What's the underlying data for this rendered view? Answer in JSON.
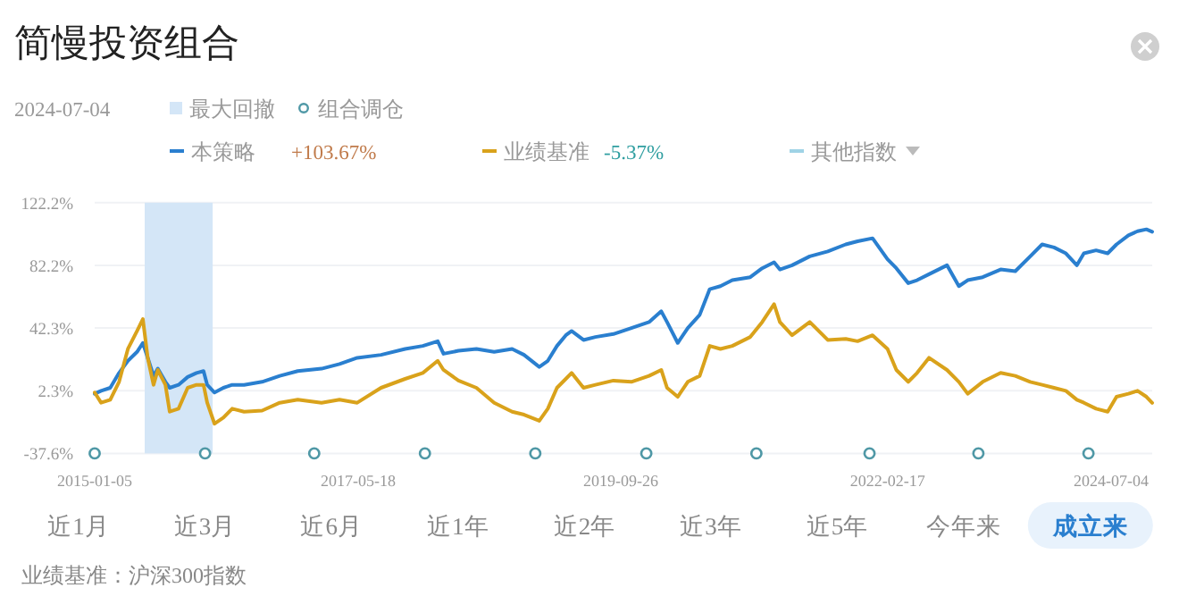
{
  "chart_data": {
    "type": "line",
    "title": "简慢投资组合",
    "subtitle": "2024-07-04",
    "xlim": [
      "2015-01-05",
      "2024-07-04"
    ],
    "xticks": [
      "2015-01-05",
      "2017-05-18",
      "2019-09-26",
      "2022-02-17",
      "2024-07-04"
    ],
    "ylim": [
      -37.6,
      122.2
    ],
    "yticks": [
      {
        "value": -37.6,
        "label": "-37.6%"
      },
      {
        "value": 2.3,
        "label": "2.3%"
      },
      {
        "value": 42.3,
        "label": "42.3%"
      },
      {
        "value": 82.2,
        "label": "82.2%"
      },
      {
        "value": 122.2,
        "label": "122.2%"
      }
    ],
    "grid": "y",
    "legend": "top left",
    "x": [
      "2015-01-05",
      "2015-01-26",
      "2015-02-25",
      "2015-03-26",
      "2015-04-24",
      "2015-05-24",
      "2015-06-12",
      "2015-06-28",
      "2015-07-17",
      "2015-07-31",
      "2015-08-25",
      "2015-09-08",
      "2015-10-07",
      "2015-11-06",
      "2015-12-05",
      "2015-12-28",
      "2016-01-09",
      "2016-02-02",
      "2016-03-02",
      "2016-03-31",
      "2016-05-09",
      "2016-07-07",
      "2016-09-03",
      "2016-11-01",
      "2017-01-18",
      "2017-03-18",
      "2017-05-15",
      "2017-08-01",
      "2017-10-19",
      "2017-12-16",
      "2018-02-03",
      "2018-02-22",
      "2018-04-12",
      "2018-06-10",
      "2018-08-07",
      "2018-10-05",
      "2018-11-13",
      "2019-01-02",
      "2019-01-30",
      "2019-03-01",
      "2019-03-30",
      "2019-04-18",
      "2019-05-27",
      "2019-07-05",
      "2019-09-02",
      "2019-10-31",
      "2019-12-28",
      "2020-02-06",
      "2020-02-25",
      "2020-03-31",
      "2020-05-03",
      "2020-06-11",
      "2020-07-14",
      "2020-08-18",
      "2020-09-26",
      "2020-11-24",
      "2021-01-02",
      "2021-02-10",
      "2021-03-01",
      "2021-04-10",
      "2021-06-07",
      "2021-08-05",
      "2021-10-03",
      "2021-11-11",
      "2021-12-30",
      "2022-02-17",
      "2022-03-18",
      "2022-04-26",
      "2022-05-25",
      "2022-07-03",
      "2022-08-31",
      "2022-10-09",
      "2022-11-07",
      "2022-12-26",
      "2023-02-23",
      "2023-04-12",
      "2023-05-31",
      "2023-07-09",
      "2023-08-17",
      "2023-09-25",
      "2023-10-31",
      "2023-11-23",
      "2024-01-02",
      "2024-02-09",
      "2024-03-09",
      "2024-04-17",
      "2024-05-17",
      "2024-06-15",
      "2024-07-04"
    ],
    "series": [
      {
        "name": "本策略",
        "type": "line",
        "color": "#2a7fcf",
        "values": [
          0.4,
          2.3,
          4.2,
          13.7,
          21.4,
          27.1,
          32.8,
          23.3,
          11.8,
          16.4,
          8.0,
          4.2,
          6.1,
          11.1,
          13.7,
          14.9,
          6.1,
          1.2,
          4.2,
          6.1,
          6.1,
          8.0,
          11.8,
          14.9,
          16.4,
          19.4,
          23.3,
          25.2,
          29.0,
          30.9,
          33.9,
          25.9,
          27.8,
          29.0,
          27.1,
          29.0,
          25.2,
          17.5,
          21.4,
          30.9,
          37.7,
          40.4,
          34.7,
          36.6,
          38.5,
          42.3,
          46.1,
          53.0,
          46.1,
          32.8,
          42.3,
          50.7,
          67.1,
          69.0,
          72.8,
          74.7,
          80.4,
          84.2,
          79.6,
          82.3,
          88.0,
          91.1,
          95.6,
          97.6,
          99.5,
          86.1,
          80.4,
          70.9,
          72.8,
          76.6,
          82.3,
          69.0,
          72.8,
          74.7,
          79.6,
          78.5,
          88.0,
          95.6,
          93.7,
          89.9,
          82.3,
          89.9,
          91.8,
          89.9,
          95.6,
          101.4,
          104.0,
          105.2,
          103.67
        ]
      },
      {
        "name": "业绩基准",
        "type": "line",
        "color": "#d9a21b",
        "values": [
          1.2,
          -5.3,
          -3.4,
          8.0,
          29.0,
          40.4,
          48.0,
          23.3,
          6.1,
          15.6,
          6.1,
          -11.0,
          -9.1,
          4.2,
          6.1,
          6.1,
          -5.3,
          -18.7,
          -14.8,
          -9.1,
          -11.0,
          -10.3,
          -5.3,
          -3.4,
          -5.3,
          -3.4,
          -5.3,
          4.2,
          9.9,
          13.7,
          21.4,
          15.6,
          8.8,
          4.2,
          -5.3,
          -11.0,
          -12.9,
          -16.8,
          -9.1,
          4.2,
          9.9,
          13.7,
          4.2,
          6.1,
          8.8,
          8.0,
          11.8,
          15.6,
          4.2,
          -1.5,
          8.0,
          11.8,
          30.9,
          29.0,
          30.9,
          36.6,
          46.1,
          57.5,
          46.1,
          37.7,
          46.1,
          34.7,
          35.4,
          33.9,
          37.7,
          29.0,
          15.6,
          8.0,
          13.7,
          23.3,
          15.6,
          8.0,
          0.4,
          8.0,
          13.7,
          11.8,
          8.0,
          6.1,
          4.2,
          2.3,
          -3.4,
          -5.3,
          -9.1,
          -11.0,
          -1.5,
          0.4,
          2.3,
          -1.5,
          -5.37
        ]
      },
      {
        "name": "组合调仓",
        "type": "scatter",
        "marker": "circle",
        "color": "#4f98a6",
        "x": [
          "2015-01-05",
          "2016-01-02",
          "2016-12-25",
          "2017-12-23",
          "2018-12-20",
          "2019-12-19",
          "2020-12-14",
          "2021-12-20",
          "2022-12-12",
          "2023-12-08"
        ],
        "values": [
          -37.6,
          -37.6,
          -37.6,
          -37.6,
          -37.6,
          -37.6,
          -37.6,
          -37.6,
          -37.6,
          -37.6
        ]
      }
    ],
    "bands": [
      {
        "axis": "x",
        "from": "2015-06-18",
        "to": "2016-01-27",
        "label": "最大回撤",
        "color": "#d4e6f7"
      }
    ],
    "annotations": [
      "+103.67%",
      "-5.37%",
      "其他指数",
      "近1月",
      "近3月",
      "近6月",
      "近1年",
      "近2年",
      "近3年",
      "近5年",
      "今年来",
      "成立来",
      "业绩基准：沪深300指数"
    ]
  }
}
